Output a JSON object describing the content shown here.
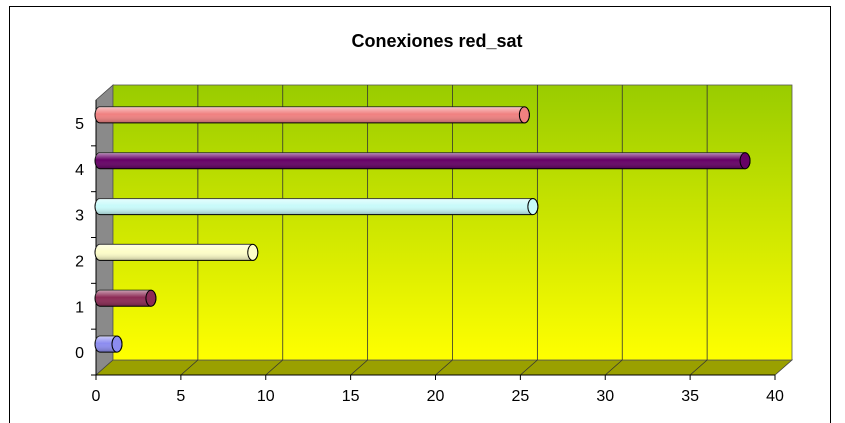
{
  "chart_data": {
    "type": "bar",
    "orientation": "horizontal",
    "title": "Conexiones red_sat",
    "categories": [
      "0",
      "1",
      "2",
      "3",
      "4",
      "5"
    ],
    "values": [
      1,
      3,
      9,
      25.5,
      38,
      25
    ],
    "bar_colors": [
      "#8c8cf0",
      "#8c2a55",
      "#fdfdc8",
      "#c8fafa",
      "#660066",
      "#f08080"
    ],
    "xlim": [
      0,
      40
    ],
    "x_ticks": [
      "0",
      "5",
      "10",
      "15",
      "20",
      "25",
      "30",
      "35",
      "40"
    ],
    "grid": true,
    "legend": "none",
    "background": {
      "top_color": "#99cc00",
      "bottom_color": "#ffff00"
    }
  }
}
